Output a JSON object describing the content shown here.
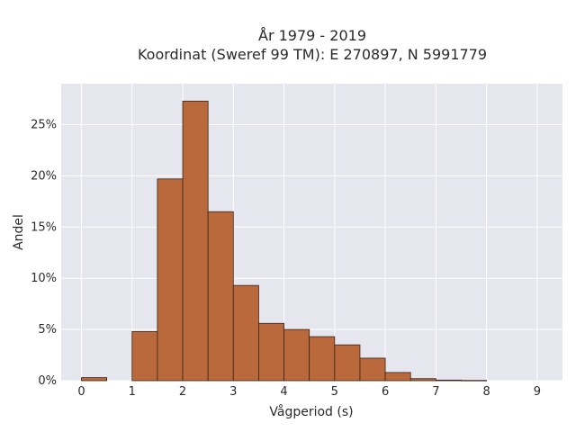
{
  "chart_data": {
    "type": "bar",
    "title_line1": "År 1979 - 2019",
    "title_line2": "Koordinat (Sweref 99 TM): E 270897, N 5991779",
    "xlabel": "Vågperiod (s)",
    "ylabel": "Andel",
    "xlim": [
      -0.4,
      9.5
    ],
    "ylim": [
      0,
      29
    ],
    "x_ticks": [
      0,
      1,
      2,
      3,
      4,
      5,
      6,
      7,
      8,
      9
    ],
    "y_ticks": [
      0,
      5,
      10,
      15,
      20,
      25
    ],
    "y_tick_labels": [
      "0%",
      "5%",
      "10%",
      "15%",
      "20%",
      "25%"
    ],
    "grid": true,
    "bar_color": "#b9693c",
    "bar_edge_color": "#3a2416",
    "background_color": "#e6e6ef",
    "bins": [
      {
        "x0": 0.0,
        "x1": 0.5,
        "value": 0.3
      },
      {
        "x0": 1.0,
        "x1": 1.5,
        "value": 4.8
      },
      {
        "x0": 1.5,
        "x1": 2.0,
        "value": 19.7
      },
      {
        "x0": 2.0,
        "x1": 2.5,
        "value": 27.3
      },
      {
        "x0": 2.5,
        "x1": 3.0,
        "value": 16.5
      },
      {
        "x0": 3.0,
        "x1": 3.5,
        "value": 9.3
      },
      {
        "x0": 3.5,
        "x1": 4.0,
        "value": 5.6
      },
      {
        "x0": 4.0,
        "x1": 4.5,
        "value": 5.0
      },
      {
        "x0": 4.5,
        "x1": 5.0,
        "value": 4.3
      },
      {
        "x0": 5.0,
        "x1": 5.5,
        "value": 3.5
      },
      {
        "x0": 5.5,
        "x1": 6.0,
        "value": 2.2
      },
      {
        "x0": 6.0,
        "x1": 6.5,
        "value": 0.8
      },
      {
        "x0": 6.5,
        "x1": 7.0,
        "value": 0.2
      },
      {
        "x0": 7.0,
        "x1": 7.5,
        "value": 0.06
      },
      {
        "x0": 7.5,
        "x1": 8.0,
        "value": 0.03
      }
    ]
  }
}
